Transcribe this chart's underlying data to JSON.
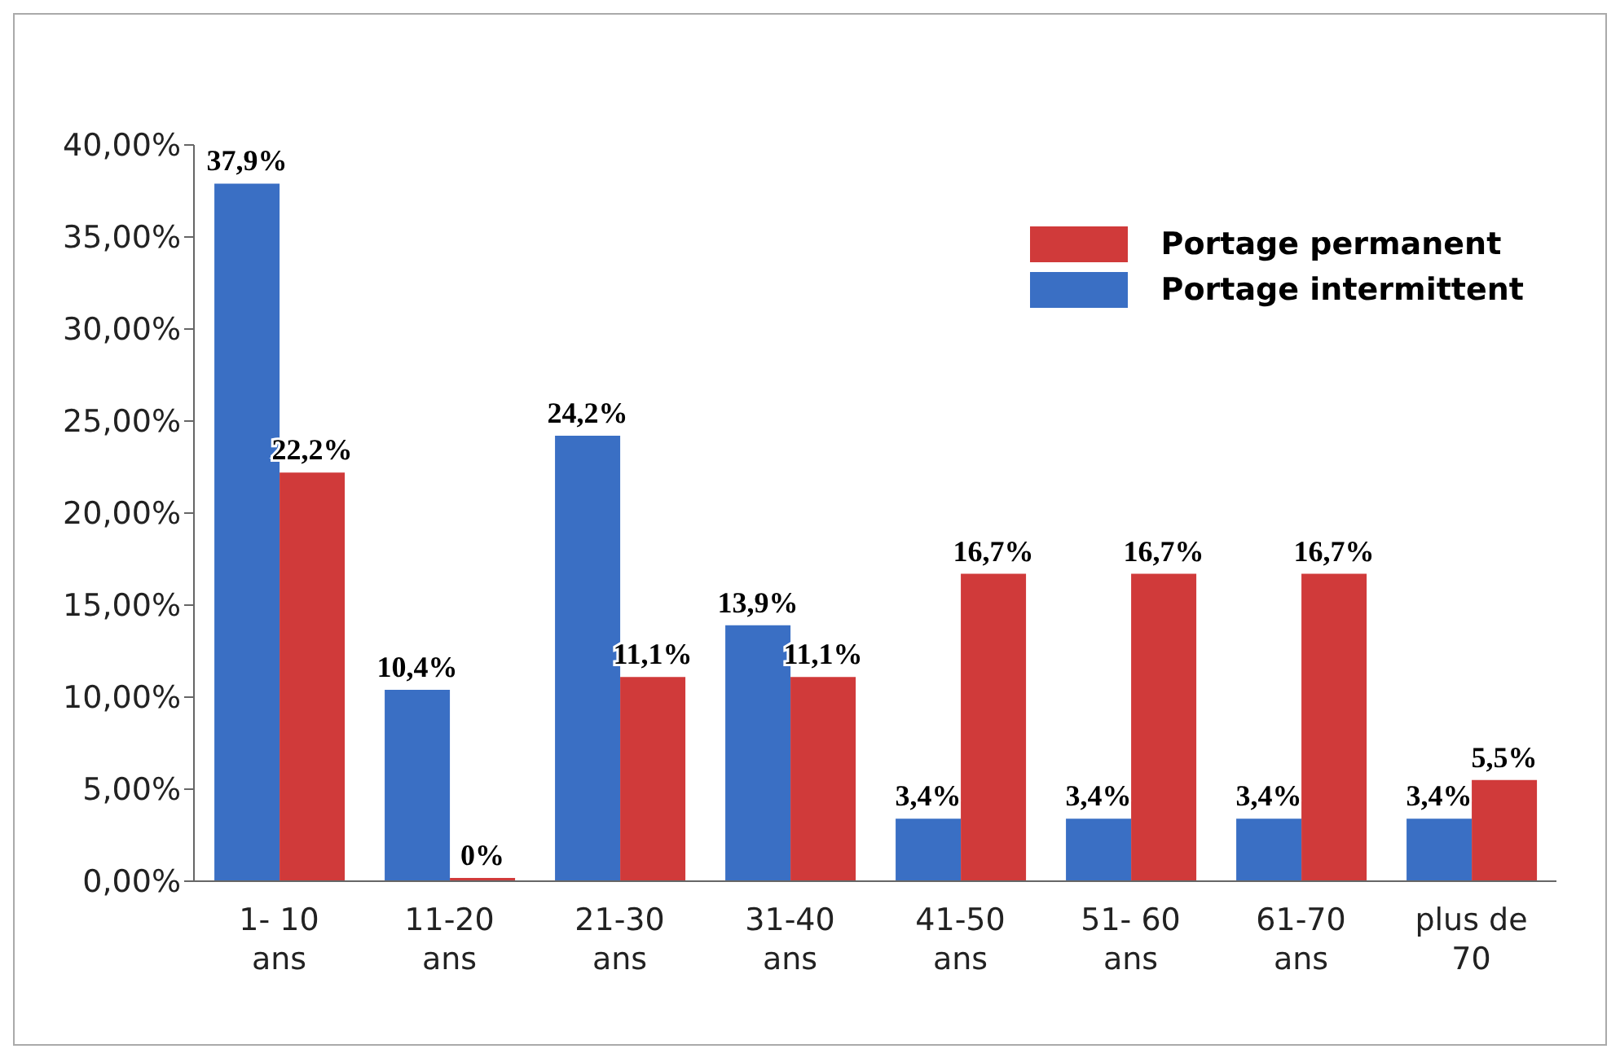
{
  "chart_data": {
    "type": "bar",
    "categories": [
      "1- 10 ans",
      "11-20 ans",
      "21-30 ans",
      "31-40 ans",
      "41-50 ans",
      "51- 60 ans",
      "61-70 ans",
      "plus de 70"
    ],
    "series": [
      {
        "name": "Portage intermittent",
        "color": "#3a6fc4",
        "values": [
          37.9,
          10.4,
          24.2,
          13.9,
          3.4,
          3.4,
          3.4,
          3.4
        ],
        "value_labels": [
          "37,9%",
          "10,4%",
          "24,2%",
          "13,9%",
          "3,4%",
          "3,4%",
          "3,4%",
          "3,4%"
        ]
      },
      {
        "name": "Portage permanent",
        "color": "#d03a3a",
        "values": [
          22.2,
          0,
          11.1,
          11.1,
          16.7,
          16.7,
          16.7,
          5.5
        ],
        "value_labels": [
          "22,2%",
          "0%",
          "11,1%",
          "11,1%",
          "16,7%",
          "16,7%",
          "16,7%",
          "5,5%"
        ]
      }
    ],
    "ylim": [
      0,
      40
    ],
    "yticks": [
      {
        "value": 0,
        "label": "0,00%"
      },
      {
        "value": 5,
        "label": "5,00%"
      },
      {
        "value": 10,
        "label": "10,00%"
      },
      {
        "value": 15,
        "label": "15,00%"
      },
      {
        "value": 20,
        "label": "20,00%"
      },
      {
        "value": 25,
        "label": "25,00%"
      },
      {
        "value": 30,
        "label": "30,00%"
      },
      {
        "value": 35,
        "label": "35,00%"
      },
      {
        "value": 40,
        "label": "40,00%"
      }
    ],
    "grid": false,
    "legend": "top right"
  }
}
